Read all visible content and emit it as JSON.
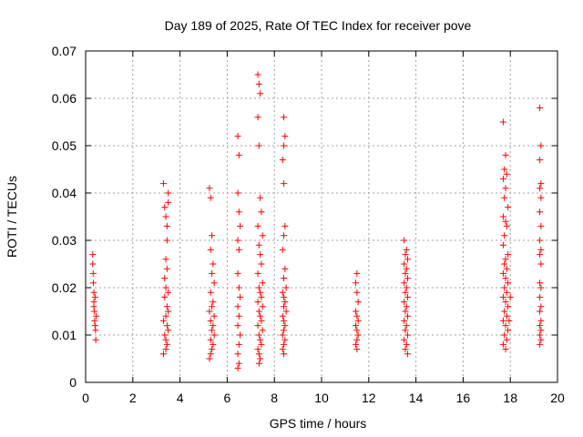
{
  "chart_data": {
    "type": "scatter",
    "title": "Day 189 of 2025, Rate Of TEC Index for receiver pove",
    "xlabel": "GPS time / hours",
    "ylabel": "ROTI / TECUs",
    "xlim": [
      0,
      20
    ],
    "ylim": [
      0,
      0.07
    ],
    "x_ticks": [
      "0",
      "2",
      "4",
      "6",
      "8",
      "10",
      "12",
      "14",
      "16",
      "18",
      "20"
    ],
    "y_ticks": [
      "0",
      "0.01",
      "0.02",
      "0.03",
      "0.04",
      "0.05",
      "0.06",
      "0.07"
    ],
    "grid": true,
    "marker": "+",
    "color": "#ff0000",
    "series": [
      {
        "name": "",
        "points": [
          [
            0.3,
            0.027
          ],
          [
            0.3,
            0.025
          ],
          [
            0.32,
            0.023
          ],
          [
            0.33,
            0.021
          ],
          [
            0.35,
            0.019
          ],
          [
            0.35,
            0.017
          ],
          [
            0.37,
            0.015
          ],
          [
            0.38,
            0.013
          ],
          [
            0.4,
            0.012
          ],
          [
            0.42,
            0.011
          ],
          [
            0.43,
            0.009
          ],
          [
            0.35,
            0.016
          ],
          [
            0.4,
            0.018
          ],
          [
            0.45,
            0.014
          ],
          [
            3.3,
            0.042
          ],
          [
            3.35,
            0.037
          ],
          [
            3.4,
            0.035
          ],
          [
            3.5,
            0.04
          ],
          [
            3.5,
            0.038
          ],
          [
            3.45,
            0.033
          ],
          [
            3.45,
            0.03
          ],
          [
            3.4,
            0.026
          ],
          [
            3.45,
            0.024
          ],
          [
            3.35,
            0.022
          ],
          [
            3.4,
            0.02
          ],
          [
            3.5,
            0.019
          ],
          [
            3.35,
            0.018
          ],
          [
            3.45,
            0.016
          ],
          [
            3.5,
            0.015
          ],
          [
            3.4,
            0.014
          ],
          [
            3.3,
            0.013
          ],
          [
            3.45,
            0.012
          ],
          [
            3.5,
            0.011
          ],
          [
            3.35,
            0.01
          ],
          [
            3.4,
            0.009
          ],
          [
            3.45,
            0.008
          ],
          [
            3.3,
            0.006
          ],
          [
            3.4,
            0.007
          ],
          [
            5.25,
            0.041
          ],
          [
            5.3,
            0.039
          ],
          [
            5.35,
            0.031
          ],
          [
            5.3,
            0.028
          ],
          [
            5.4,
            0.025
          ],
          [
            5.35,
            0.023
          ],
          [
            5.45,
            0.021
          ],
          [
            5.3,
            0.019
          ],
          [
            5.4,
            0.017
          ],
          [
            5.35,
            0.016
          ],
          [
            5.25,
            0.015
          ],
          [
            5.45,
            0.014
          ],
          [
            5.3,
            0.013
          ],
          [
            5.4,
            0.012
          ],
          [
            5.35,
            0.011
          ],
          [
            5.45,
            0.01
          ],
          [
            5.3,
            0.009
          ],
          [
            5.4,
            0.008
          ],
          [
            5.35,
            0.007
          ],
          [
            5.3,
            0.006
          ],
          [
            5.25,
            0.005
          ],
          [
            6.45,
            0.052
          ],
          [
            6.5,
            0.048
          ],
          [
            6.45,
            0.04
          ],
          [
            6.5,
            0.036
          ],
          [
            6.55,
            0.033
          ],
          [
            6.45,
            0.03
          ],
          [
            6.5,
            0.028
          ],
          [
            6.45,
            0.023
          ],
          [
            6.5,
            0.02
          ],
          [
            6.55,
            0.018
          ],
          [
            6.45,
            0.016
          ],
          [
            6.5,
            0.014
          ],
          [
            6.45,
            0.012
          ],
          [
            6.55,
            0.01
          ],
          [
            6.5,
            0.008
          ],
          [
            6.45,
            0.006
          ],
          [
            6.5,
            0.004
          ],
          [
            6.45,
            0.003
          ],
          [
            7.3,
            0.065
          ],
          [
            7.35,
            0.063
          ],
          [
            7.4,
            0.061
          ],
          [
            7.3,
            0.056
          ],
          [
            7.35,
            0.05
          ],
          [
            7.4,
            0.039
          ],
          [
            7.45,
            0.036
          ],
          [
            7.3,
            0.033
          ],
          [
            7.5,
            0.031
          ],
          [
            7.35,
            0.029
          ],
          [
            7.4,
            0.027
          ],
          [
            7.45,
            0.025
          ],
          [
            7.3,
            0.023
          ],
          [
            7.5,
            0.021
          ],
          [
            7.35,
            0.02
          ],
          [
            7.4,
            0.019
          ],
          [
            7.45,
            0.018
          ],
          [
            7.3,
            0.017
          ],
          [
            7.5,
            0.016
          ],
          [
            7.35,
            0.015
          ],
          [
            7.4,
            0.014
          ],
          [
            7.45,
            0.013
          ],
          [
            7.3,
            0.012
          ],
          [
            7.5,
            0.011
          ],
          [
            7.35,
            0.01
          ],
          [
            7.4,
            0.009
          ],
          [
            7.45,
            0.008
          ],
          [
            7.3,
            0.007
          ],
          [
            7.35,
            0.006
          ],
          [
            7.4,
            0.005
          ],
          [
            7.35,
            0.004
          ],
          [
            8.4,
            0.056
          ],
          [
            8.45,
            0.052
          ],
          [
            8.4,
            0.05
          ],
          [
            8.35,
            0.047
          ],
          [
            8.4,
            0.042
          ],
          [
            8.45,
            0.033
          ],
          [
            8.4,
            0.031
          ],
          [
            8.35,
            0.028
          ],
          [
            8.45,
            0.024
          ],
          [
            8.4,
            0.022
          ],
          [
            8.5,
            0.02
          ],
          [
            8.35,
            0.019
          ],
          [
            8.4,
            0.018
          ],
          [
            8.45,
            0.017
          ],
          [
            8.4,
            0.016
          ],
          [
            8.5,
            0.015
          ],
          [
            8.35,
            0.014
          ],
          [
            8.4,
            0.013
          ],
          [
            8.45,
            0.012
          ],
          [
            8.4,
            0.011
          ],
          [
            8.35,
            0.01
          ],
          [
            8.45,
            0.009
          ],
          [
            8.4,
            0.008
          ],
          [
            8.35,
            0.007
          ],
          [
            8.4,
            0.006
          ],
          [
            11.5,
            0.023
          ],
          [
            11.45,
            0.021
          ],
          [
            11.5,
            0.019
          ],
          [
            11.55,
            0.017
          ],
          [
            11.45,
            0.015
          ],
          [
            11.5,
            0.014
          ],
          [
            11.55,
            0.013
          ],
          [
            11.45,
            0.012
          ],
          [
            11.5,
            0.011
          ],
          [
            11.55,
            0.01
          ],
          [
            11.5,
            0.009
          ],
          [
            11.45,
            0.008
          ],
          [
            11.5,
            0.007
          ],
          [
            13.5,
            0.03
          ],
          [
            13.6,
            0.028
          ],
          [
            13.55,
            0.027
          ],
          [
            13.65,
            0.026
          ],
          [
            13.5,
            0.025
          ],
          [
            13.6,
            0.024
          ],
          [
            13.55,
            0.023
          ],
          [
            13.65,
            0.022
          ],
          [
            13.5,
            0.021
          ],
          [
            13.6,
            0.02
          ],
          [
            13.55,
            0.019
          ],
          [
            13.65,
            0.018
          ],
          [
            13.5,
            0.017
          ],
          [
            13.6,
            0.016
          ],
          [
            13.55,
            0.015
          ],
          [
            13.65,
            0.014
          ],
          [
            13.5,
            0.013
          ],
          [
            13.6,
            0.012
          ],
          [
            13.55,
            0.011
          ],
          [
            13.65,
            0.01
          ],
          [
            13.5,
            0.009
          ],
          [
            13.6,
            0.008
          ],
          [
            13.55,
            0.007
          ],
          [
            13.65,
            0.006
          ],
          [
            17.7,
            0.055
          ],
          [
            17.8,
            0.048
          ],
          [
            17.75,
            0.045
          ],
          [
            17.85,
            0.044
          ],
          [
            17.7,
            0.043
          ],
          [
            17.8,
            0.041
          ],
          [
            17.75,
            0.039
          ],
          [
            17.9,
            0.037
          ],
          [
            17.7,
            0.035
          ],
          [
            17.8,
            0.034
          ],
          [
            17.85,
            0.033
          ],
          [
            17.75,
            0.031
          ],
          [
            17.7,
            0.029
          ],
          [
            17.9,
            0.027
          ],
          [
            17.8,
            0.026
          ],
          [
            17.75,
            0.025
          ],
          [
            17.85,
            0.024
          ],
          [
            17.7,
            0.023
          ],
          [
            17.8,
            0.022
          ],
          [
            17.9,
            0.021
          ],
          [
            17.75,
            0.02
          ],
          [
            17.85,
            0.019
          ],
          [
            17.7,
            0.018
          ],
          [
            17.8,
            0.017
          ],
          [
            17.9,
            0.016
          ],
          [
            17.75,
            0.015
          ],
          [
            17.85,
            0.014
          ],
          [
            17.7,
            0.013
          ],
          [
            17.8,
            0.012
          ],
          [
            17.9,
            0.011
          ],
          [
            17.75,
            0.01
          ],
          [
            17.85,
            0.009
          ],
          [
            17.7,
            0.008
          ],
          [
            17.8,
            0.007
          ],
          [
            17.95,
            0.013
          ],
          [
            18.0,
            0.018
          ],
          [
            19.25,
            0.058
          ],
          [
            19.3,
            0.05
          ],
          [
            19.25,
            0.047
          ],
          [
            19.3,
            0.042
          ],
          [
            19.25,
            0.041
          ],
          [
            19.3,
            0.039
          ],
          [
            19.25,
            0.036
          ],
          [
            19.3,
            0.033
          ],
          [
            19.25,
            0.03
          ],
          [
            19.3,
            0.028
          ],
          [
            19.25,
            0.027
          ],
          [
            19.3,
            0.025
          ],
          [
            19.25,
            0.021
          ],
          [
            19.3,
            0.02
          ],
          [
            19.25,
            0.018
          ],
          [
            19.3,
            0.016
          ],
          [
            19.25,
            0.015
          ],
          [
            19.3,
            0.013
          ],
          [
            19.25,
            0.012
          ],
          [
            19.3,
            0.011
          ],
          [
            19.25,
            0.01
          ],
          [
            19.3,
            0.009
          ],
          [
            19.25,
            0.008
          ]
        ]
      }
    ]
  }
}
